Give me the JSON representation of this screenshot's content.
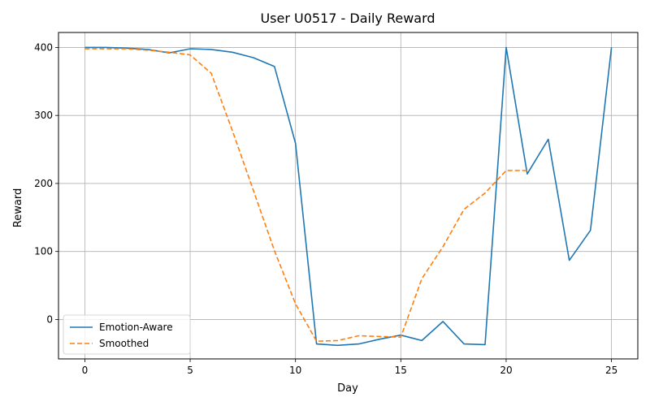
{
  "chart_data": {
    "type": "line",
    "title": "User U0517 - Daily Reward",
    "xlabel": "Day",
    "ylabel": "Reward",
    "xlim": [
      -1.25,
      26.25
    ],
    "ylim": [
      -58,
      422
    ],
    "xticks": [
      0,
      5,
      10,
      15,
      20,
      25
    ],
    "yticks": [
      0,
      100,
      200,
      300,
      400
    ],
    "grid": true,
    "legend_position": "lower-left",
    "x": [
      0,
      1,
      2,
      3,
      4,
      5,
      6,
      7,
      8,
      9,
      10,
      11,
      12,
      13,
      14,
      15,
      16,
      17,
      18,
      19,
      20,
      21,
      22,
      23,
      24,
      25
    ],
    "series": [
      {
        "name": "Emotion-Aware",
        "color": "#1f77b4",
        "style": "solid",
        "values": [
          400,
          400,
          399,
          397,
          392,
          398,
          397,
          393,
          385,
          372,
          259,
          -36,
          -38,
          -36,
          -29,
          -23,
          -31,
          -3,
          -36,
          -37,
          400,
          214,
          265,
          87,
          131,
          400
        ]
      },
      {
        "name": "Smoothed",
        "color": "#ff7f0e",
        "style": "dashed",
        "x": [
          0,
          1,
          2,
          3,
          4,
          5,
          6,
          7,
          8,
          9,
          10,
          11,
          12,
          13,
          14,
          15,
          16,
          17,
          18,
          19,
          20,
          21
        ],
        "values": [
          398,
          398,
          398,
          396,
          393,
          389,
          362,
          278,
          190,
          101,
          23,
          -32,
          -31,
          -24,
          -25,
          -26,
          60,
          107,
          162,
          186,
          219,
          219
        ]
      }
    ]
  }
}
